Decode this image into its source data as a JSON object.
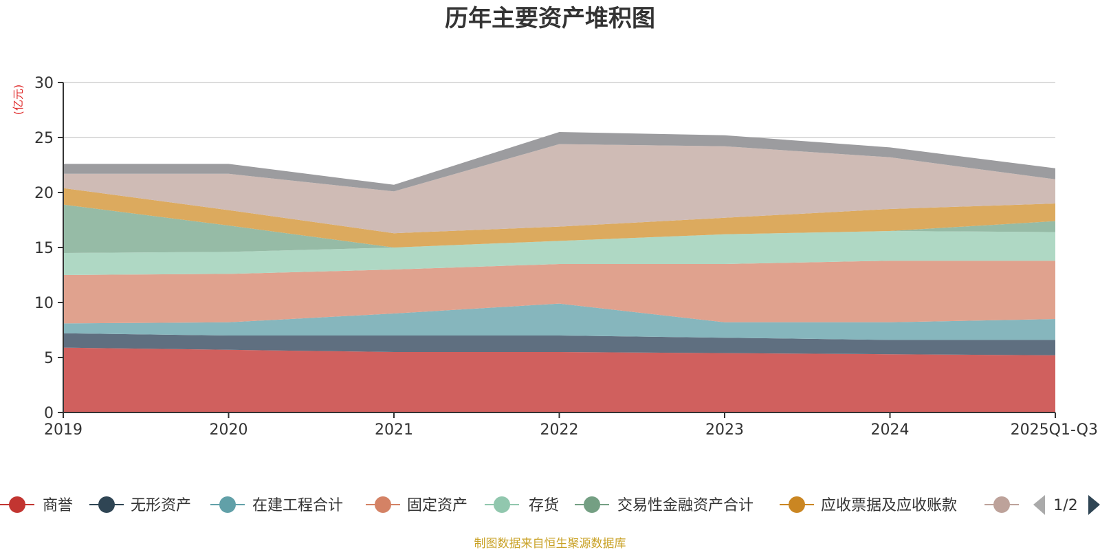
{
  "chart_data": {
    "type": "area",
    "stacked": true,
    "title": "历年主要资产堆积图",
    "ylabel": "(亿元)",
    "xlabel": "",
    "ylim": [
      0,
      30
    ],
    "yticks": [
      0,
      5,
      10,
      15,
      20,
      25,
      30
    ],
    "grid": true,
    "categories": [
      "2019",
      "2020",
      "2021",
      "2022",
      "2023",
      "2024",
      "2025Q1-Q3"
    ],
    "series": [
      {
        "name": "商誉",
        "color": "#d0605e",
        "values": [
          5.9,
          5.7,
          5.5,
          5.5,
          5.4,
          5.3,
          5.2
        ]
      },
      {
        "name": "无形资产",
        "color": "#5f6f80",
        "values": [
          1.3,
          1.3,
          1.5,
          1.5,
          1.4,
          1.3,
          1.4
        ]
      },
      {
        "name": "在建工程合计",
        "color": "#86b6bd",
        "values": [
          0.9,
          1.2,
          2.0,
          2.9,
          1.4,
          1.6,
          1.9
        ]
      },
      {
        "name": "固定资产",
        "color": "#e0a28e",
        "values": [
          4.4,
          4.4,
          4.0,
          3.6,
          5.3,
          5.6,
          5.3
        ]
      },
      {
        "name": "存货",
        "color": "#afd8c4",
        "values": [
          2.0,
          2.0,
          2.0,
          2.1,
          2.7,
          2.7,
          2.6
        ]
      },
      {
        "name": "交易性金融资产合计",
        "color": "#96bba6",
        "values": [
          4.4,
          2.4,
          0.0,
          0.0,
          0.0,
          0.0,
          1.0
        ]
      },
      {
        "name": "应收票据及应收账款",
        "color": "#dcaa5e",
        "values": [
          1.5,
          1.4,
          1.3,
          1.3,
          1.5,
          2.0,
          1.6
        ]
      },
      {
        "name": "",
        "color": "#cfbbb5",
        "values": [
          1.3,
          3.3,
          3.8,
          7.5,
          6.5,
          4.7,
          2.2
        ]
      },
      {
        "name": "",
        "color": "#9c9c9f",
        "values": [
          0.9,
          0.9,
          0.6,
          1.1,
          1.0,
          0.9,
          1.0
        ]
      }
    ],
    "legend": {
      "position": "bottom",
      "page_label": "1/2"
    },
    "source_note": "制图数据来自恒生聚源数据库"
  }
}
